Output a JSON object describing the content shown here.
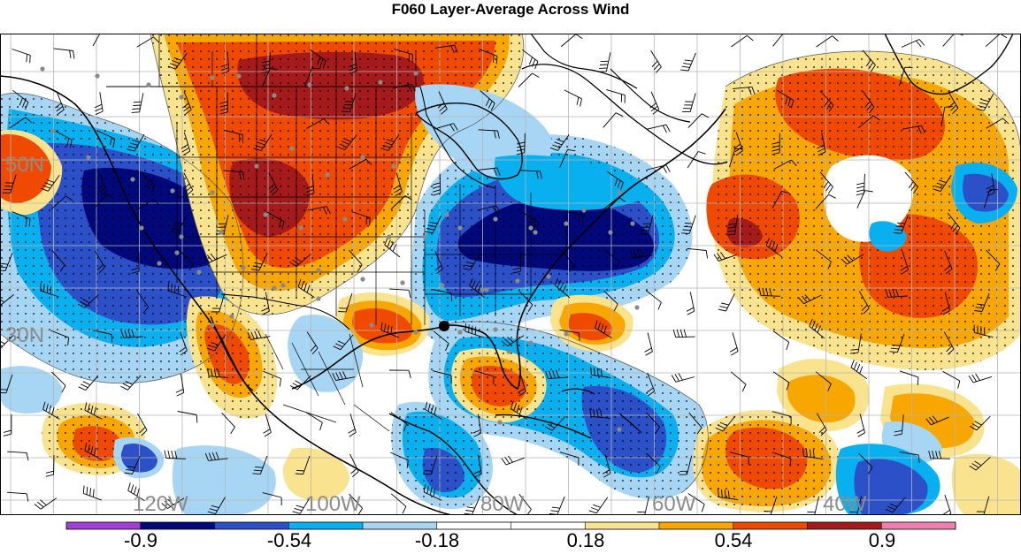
{
  "title": "F060 Layer-Average Across Wind",
  "map": {
    "lat_labels": [
      "50N",
      "30N"
    ],
    "lon_labels": [
      "120W",
      "100W",
      "80W",
      "60W",
      "40W"
    ]
  },
  "colorbar": {
    "colors": [
      "#a23ed6",
      "#00087a",
      "#2c50c8",
      "#08b0f0",
      "#a6d6f4",
      "#ffffff",
      "#ffffff",
      "#fae38e",
      "#f8a600",
      "#f04a00",
      "#a51a1a",
      "#f07fb0"
    ],
    "tick_labels": [
      "-0.9",
      "-0.54",
      "-0.18",
      "0.18",
      "0.54",
      "0.9"
    ]
  },
  "palette": {
    "dark_blue": "#00087a",
    "mid_blue": "#2c50c8",
    "cyan": "#08b0f0",
    "light_blue": "#a6d6f4",
    "light_yellow": "#fae38e",
    "orange": "#f8a600",
    "red_orange": "#f04a00",
    "dark_red": "#a51a1a"
  }
}
